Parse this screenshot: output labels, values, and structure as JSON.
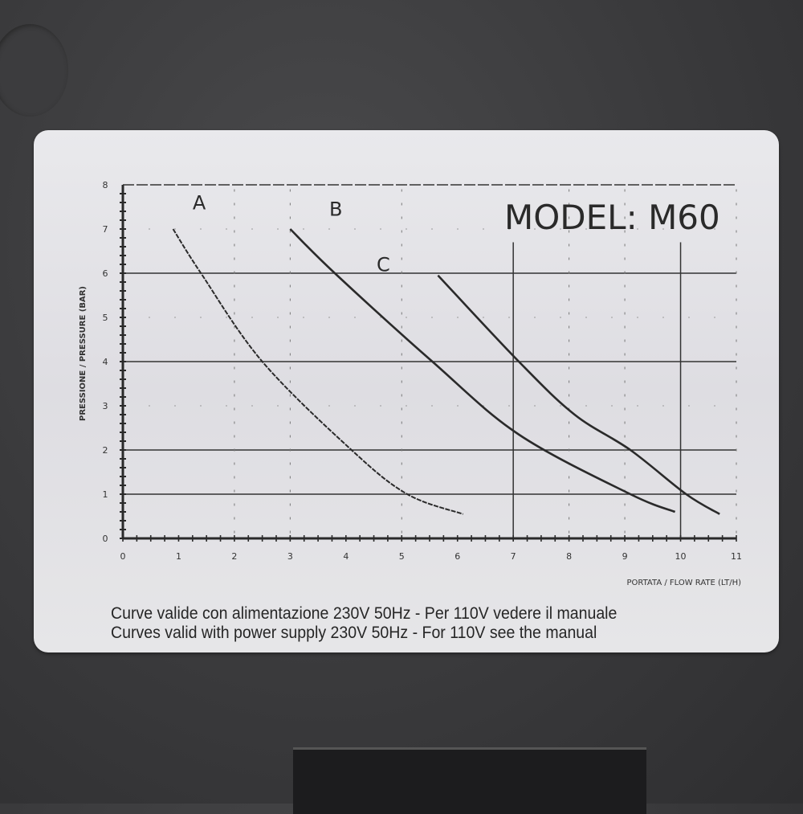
{
  "model_label": "MODEL: M60",
  "notes": [
    "Curve valide con alimentazione 230V 50Hz - Per 110V vedere il manuale",
    "Curves valid with power supply 230V 50Hz - For 110V see the manual"
  ],
  "chart_data": {
    "type": "line",
    "title": "MODEL: M60",
    "xlabel": "PORTATA / FLOW RATE (LT/H)",
    "ylabel": "PRESSIONE / PRESSURE (BAR)",
    "xlim": [
      0,
      11
    ],
    "ylim": [
      0,
      8
    ],
    "xticks": [
      "0",
      "1",
      "2",
      "3",
      "4",
      "5",
      "6",
      "7",
      "8",
      "9",
      "10",
      "11"
    ],
    "yticks": [
      "0",
      "1",
      "2",
      "3",
      "4",
      "5",
      "6",
      "7",
      "8"
    ],
    "grid": true,
    "line_color": "#2a2a2a",
    "series": [
      {
        "name": "A",
        "x": [
          0.9,
          1.4,
          2.5,
          4.1,
          5.1,
          6.1
        ],
        "y": [
          7.0,
          6.0,
          4.0,
          2.0,
          1.0,
          0.55
        ]
      },
      {
        "name": "B",
        "x": [
          3.0,
          3.8,
          5.55,
          7.1,
          9.1,
          9.9
        ],
        "y": [
          7.0,
          6.0,
          4.0,
          2.35,
          1.0,
          0.6
        ]
      },
      {
        "name": "C",
        "x": [
          5.65,
          7.1,
          8.1,
          9.1,
          10.1,
          10.7
        ],
        "y": [
          5.95,
          4.0,
          2.8,
          2.0,
          1.0,
          0.55
        ]
      }
    ]
  }
}
